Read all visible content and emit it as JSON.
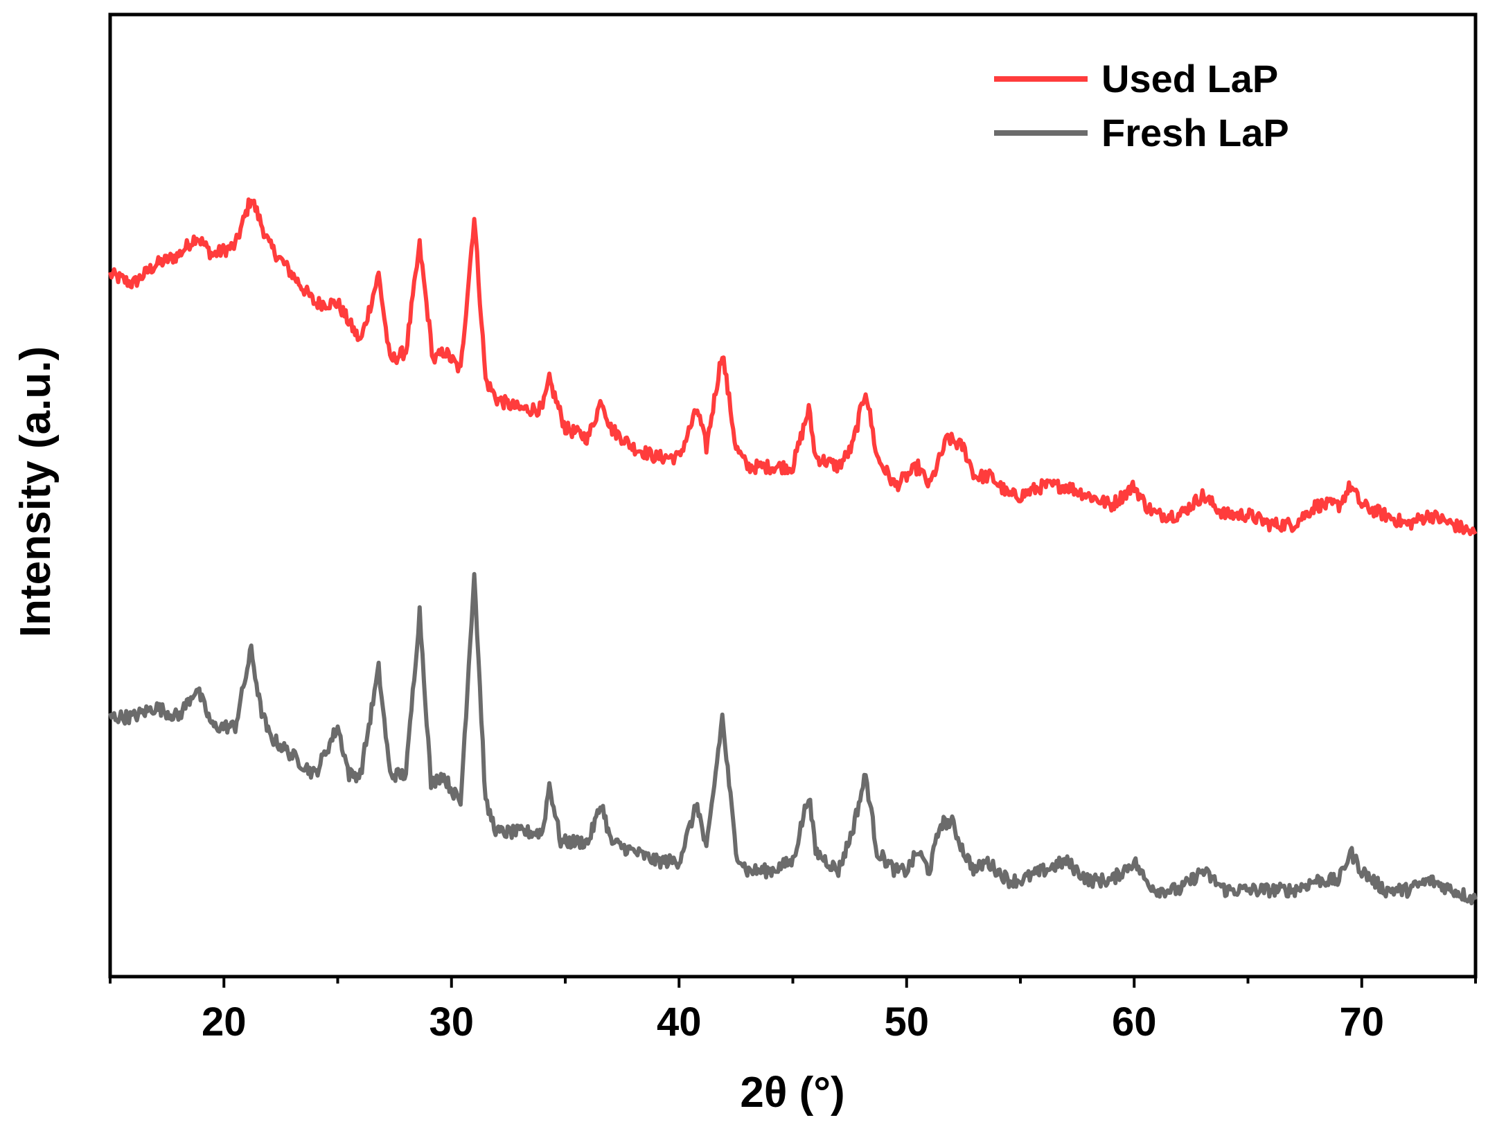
{
  "chart_data": {
    "type": "line",
    "xlabel": "2θ (°)",
    "ylabel": "Intensity (a.u.)",
    "xlim": [
      15,
      75
    ],
    "ylim": [
      0,
      100
    ],
    "x_ticks": [
      20,
      30,
      40,
      50,
      60,
      70
    ],
    "x_minor_step": 5,
    "y_ticks_shown": false,
    "grid": false,
    "legend_position": "top-right",
    "series": [
      {
        "name": "Used LaP",
        "color": "#ff3c3c",
        "points": [
          [
            15,
            73
          ],
          [
            16,
            72
          ],
          [
            17,
            74
          ],
          [
            18,
            75
          ],
          [
            18.8,
            77
          ],
          [
            19.5,
            75
          ],
          [
            20.5,
            76
          ],
          [
            21.2,
            81
          ],
          [
            22,
            76
          ],
          [
            23,
            73
          ],
          [
            24,
            70
          ],
          [
            25,
            70
          ],
          [
            26,
            66
          ],
          [
            26.8,
            73
          ],
          [
            27.3,
            64
          ],
          [
            28,
            65
          ],
          [
            28.6,
            76
          ],
          [
            29.2,
            64
          ],
          [
            29.7,
            65
          ],
          [
            30.4,
            63
          ],
          [
            31.0,
            79
          ],
          [
            31.5,
            62
          ],
          [
            32,
            60
          ],
          [
            33,
            59
          ],
          [
            34,
            59
          ],
          [
            34.3,
            62
          ],
          [
            35,
            57
          ],
          [
            36,
            56
          ],
          [
            36.6,
            60
          ],
          [
            37,
            57
          ],
          [
            38,
            55
          ],
          [
            39,
            54
          ],
          [
            40,
            54
          ],
          [
            40.8,
            59
          ],
          [
            41.2,
            55
          ],
          [
            41.9,
            65
          ],
          [
            42.5,
            55
          ],
          [
            43,
            53
          ],
          [
            44,
            53
          ],
          [
            45,
            53
          ],
          [
            45.7,
            59
          ],
          [
            46,
            54
          ],
          [
            47,
            53
          ],
          [
            47.6,
            55
          ],
          [
            48.2,
            61
          ],
          [
            48.7,
            54
          ],
          [
            49.5,
            51
          ],
          [
            50,
            52
          ],
          [
            50.5,
            53
          ],
          [
            51,
            51
          ],
          [
            51.8,
            56
          ],
          [
            52.5,
            55
          ],
          [
            53,
            52
          ],
          [
            53.7,
            52
          ],
          [
            54.5,
            50
          ],
          [
            55,
            50
          ],
          [
            56,
            51
          ],
          [
            57,
            51
          ],
          [
            58,
            50
          ],
          [
            59,
            49
          ],
          [
            60,
            51
          ],
          [
            60.5,
            49
          ],
          [
            61,
            48
          ],
          [
            62,
            48
          ],
          [
            63,
            50
          ],
          [
            64,
            48
          ],
          [
            65,
            48
          ],
          [
            66,
            47
          ],
          [
            67,
            47
          ],
          [
            68,
            49
          ],
          [
            69,
            49
          ],
          [
            69.5,
            51
          ],
          [
            70,
            49
          ],
          [
            71,
            48
          ],
          [
            72,
            47
          ],
          [
            73,
            48
          ],
          [
            74,
            47
          ],
          [
            75,
            46
          ]
        ]
      },
      {
        "name": "Fresh LaP",
        "color": "#6b6b6b",
        "points": [
          [
            15,
            27
          ],
          [
            16,
            27
          ],
          [
            17,
            28
          ],
          [
            18,
            27
          ],
          [
            18.8,
            30
          ],
          [
            19.5,
            26
          ],
          [
            20.5,
            26
          ],
          [
            21.2,
            34
          ],
          [
            21.6,
            28
          ],
          [
            22,
            25
          ],
          [
            23,
            23
          ],
          [
            24,
            21
          ],
          [
            25,
            26
          ],
          [
            25.5,
            21
          ],
          [
            26,
            21
          ],
          [
            26.8,
            32
          ],
          [
            27.3,
            21
          ],
          [
            28,
            21
          ],
          [
            28.6,
            38
          ],
          [
            29.1,
            20
          ],
          [
            29.6,
            21
          ],
          [
            30.4,
            18
          ],
          [
            31.0,
            42
          ],
          [
            31.5,
            18
          ],
          [
            32,
            15
          ],
          [
            33,
            15
          ],
          [
            34,
            15
          ],
          [
            34.3,
            20
          ],
          [
            34.8,
            14
          ],
          [
            35,
            14
          ],
          [
            36,
            14
          ],
          [
            36.6,
            18
          ],
          [
            37,
            14
          ],
          [
            38,
            13
          ],
          [
            39,
            12
          ],
          [
            40,
            12
          ],
          [
            40.8,
            18
          ],
          [
            41.2,
            13
          ],
          [
            41.9,
            27
          ],
          [
            42.5,
            13
          ],
          [
            43,
            11
          ],
          [
            44,
            11
          ],
          [
            45,
            12
          ],
          [
            45.7,
            19
          ],
          [
            46,
            13
          ],
          [
            47,
            11
          ],
          [
            47.6,
            15
          ],
          [
            48.2,
            21
          ],
          [
            48.7,
            13
          ],
          [
            49.5,
            11
          ],
          [
            50,
            11
          ],
          [
            50.5,
            13
          ],
          [
            51,
            11
          ],
          [
            51.5,
            16
          ],
          [
            52,
            16
          ],
          [
            52.5,
            13
          ],
          [
            53,
            11
          ],
          [
            53.5,
            12
          ],
          [
            54.5,
            10
          ],
          [
            55,
            10
          ],
          [
            56,
            11
          ],
          [
            57,
            12
          ],
          [
            58,
            10
          ],
          [
            59,
            10
          ],
          [
            60,
            12
          ],
          [
            60.5,
            10
          ],
          [
            61,
            9
          ],
          [
            62,
            9
          ],
          [
            63,
            11
          ],
          [
            64,
            9
          ],
          [
            65,
            9
          ],
          [
            66,
            9
          ],
          [
            67,
            9
          ],
          [
            68,
            10
          ],
          [
            69,
            10
          ],
          [
            69.5,
            13
          ],
          [
            70,
            11
          ],
          [
            71,
            9
          ],
          [
            72,
            9
          ],
          [
            73,
            10
          ],
          [
            74,
            9
          ],
          [
            75,
            8
          ]
        ]
      }
    ]
  }
}
